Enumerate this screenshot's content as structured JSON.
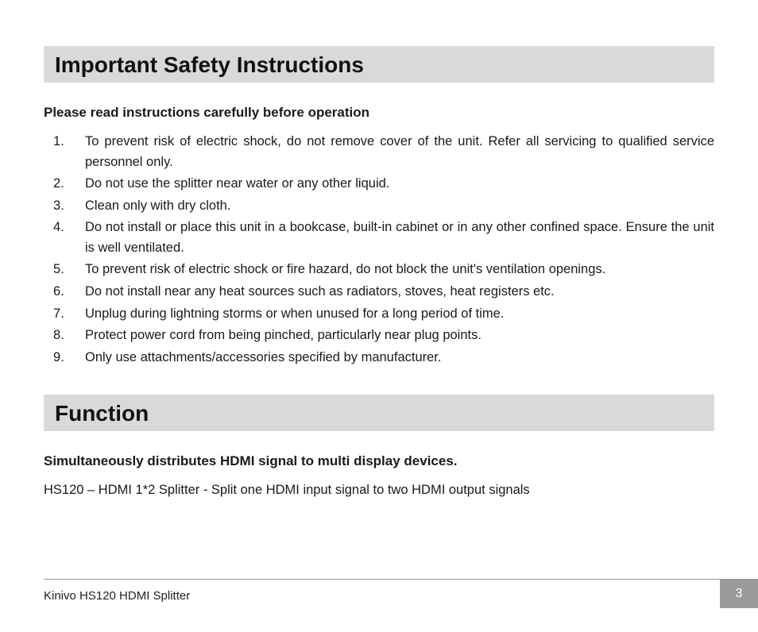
{
  "section1": {
    "heading": "Important Safety Instructions",
    "subheading": "Please read instructions carefully before operation",
    "items": [
      "To prevent risk of electric shock, do not remove cover of the unit. Refer all servicing to qualified service personnel only.",
      "Do not use the splitter near water or any other liquid.",
      "Clean only with dry cloth.",
      "Do not install or place this unit in a bookcase, built-in cabinet or in any other confined space. Ensure the unit is well ventilated.",
      "To prevent risk of electric shock or fire hazard, do not block the unit's ventilation openings.",
      "Do not install near any heat sources such as radiators, stoves, heat registers etc.",
      "Unplug during lightning storms or when unused for a long period of time.",
      "Protect power cord from being pinched, particularly near plug points.",
      "Only use attachments/accessories specified by manufacturer."
    ]
  },
  "section2": {
    "heading": "Function",
    "subheading": "Simultaneously distributes HDMI signal to multi display devices.",
    "body": "HS120 – HDMI 1*2 Splitter - Split one HDMI input signal to two HDMI output signals"
  },
  "footer": {
    "product": "Kinivo HS120 HDMI Splitter",
    "page": "3"
  },
  "style": {
    "heading_bg": "#d9d9d9",
    "heading_fontsize": 28,
    "sub_fontsize": 17,
    "body_fontsize": 16.5,
    "footer_fontsize": 15,
    "pagenum_bg": "#9a9a9a",
    "pagenum_color": "#ffffff",
    "text_color": "#1a1a1a"
  }
}
